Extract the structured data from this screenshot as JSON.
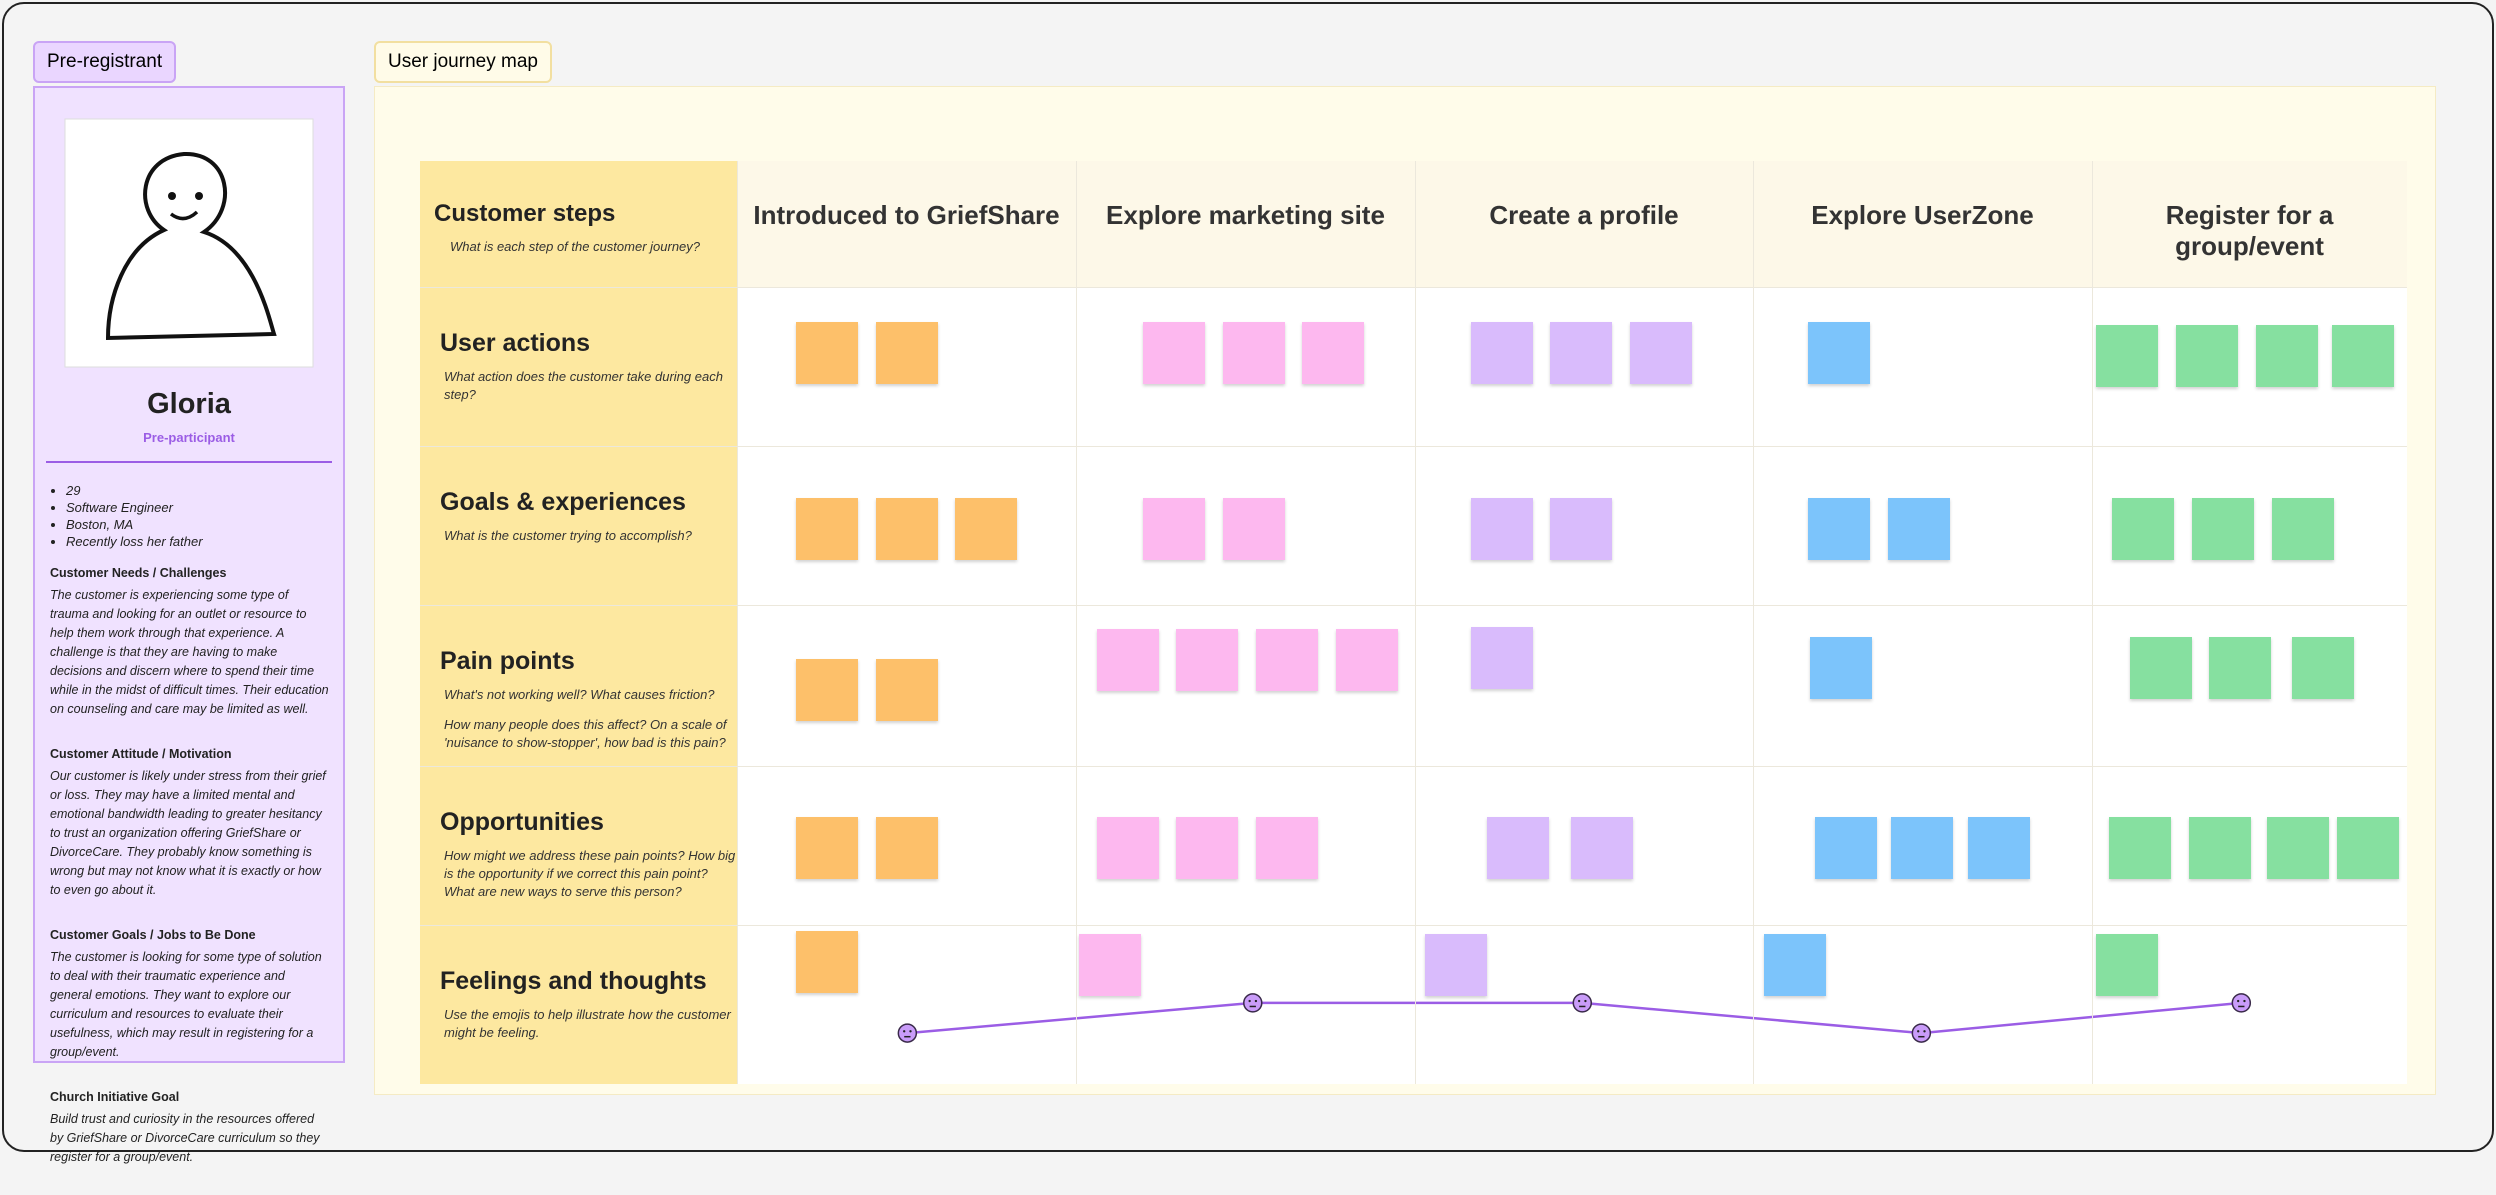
{
  "persona": {
    "tag": "Pre-registrant",
    "name": "Gloria",
    "role": "Pre-participant",
    "facts": [
      "29",
      "Software Engineer",
      "Boston, MA",
      "Recently loss her father"
    ],
    "sections": [
      {
        "title": "Customer Needs / Challenges",
        "text": "The customer is experiencing some type of trauma and looking for an outlet or resource to help them work through that experience. A challenge is that they are having to make decisions and discern where to spend their time while in the midst of difficult times. Their education on counseling and care may be limited as well."
      },
      {
        "title": "Customer Attitude / Motivation",
        "text": "Our customer is likely under stress from their grief or loss. They may have a limited mental and emotional bandwidth leading to greater hesitancy to trust an organization offering GriefShare or DivorceCare. They probably know something is wrong but may not know what it is exactly or how to even go about it."
      },
      {
        "title": "Customer Goals / Jobs to Be Done",
        "text": "The customer is looking for some type of solution to deal with their traumatic experience and general emotions. They want to explore our curriculum and resources to evaluate their usefulness, which may result in registering for a group/event."
      },
      {
        "title": "Church Initiative Goal",
        "text": "Build trust and curiosity in the resources offered by GriefShare or DivorceCare curriculum so they register for a group/event."
      }
    ]
  },
  "journey": {
    "tag": "User journey map",
    "steps_header": {
      "title": "Customer steps",
      "prompt": [
        "What is each step of the customer journey?"
      ]
    },
    "stages": [
      "Introduced to GriefShare",
      "Explore marketing site",
      "Create a profile",
      "Explore UserZone",
      "Register for a group/event"
    ],
    "rows": [
      {
        "title": "User actions",
        "prompt": [
          "What action does the customer take during each step?"
        ]
      },
      {
        "title": "Goals & experiences",
        "prompt": [
          "What is the customer trying to accomplish?"
        ]
      },
      {
        "title": "Pain points",
        "prompt": [
          "What's not working well? What causes friction?",
          "How many people does this affect? On a scale of 'nuisance to show-stopper', how bad is this pain?"
        ]
      },
      {
        "title": "Opportunities",
        "prompt": [
          "How might we address these pain points? How big is the opportunity if we correct this pain point? What are new ways to serve this person?"
        ]
      },
      {
        "title": "Feelings and thoughts",
        "prompt": [
          "Use the emojis to help illustrate how the customer might be feeling."
        ]
      }
    ]
  }
}
